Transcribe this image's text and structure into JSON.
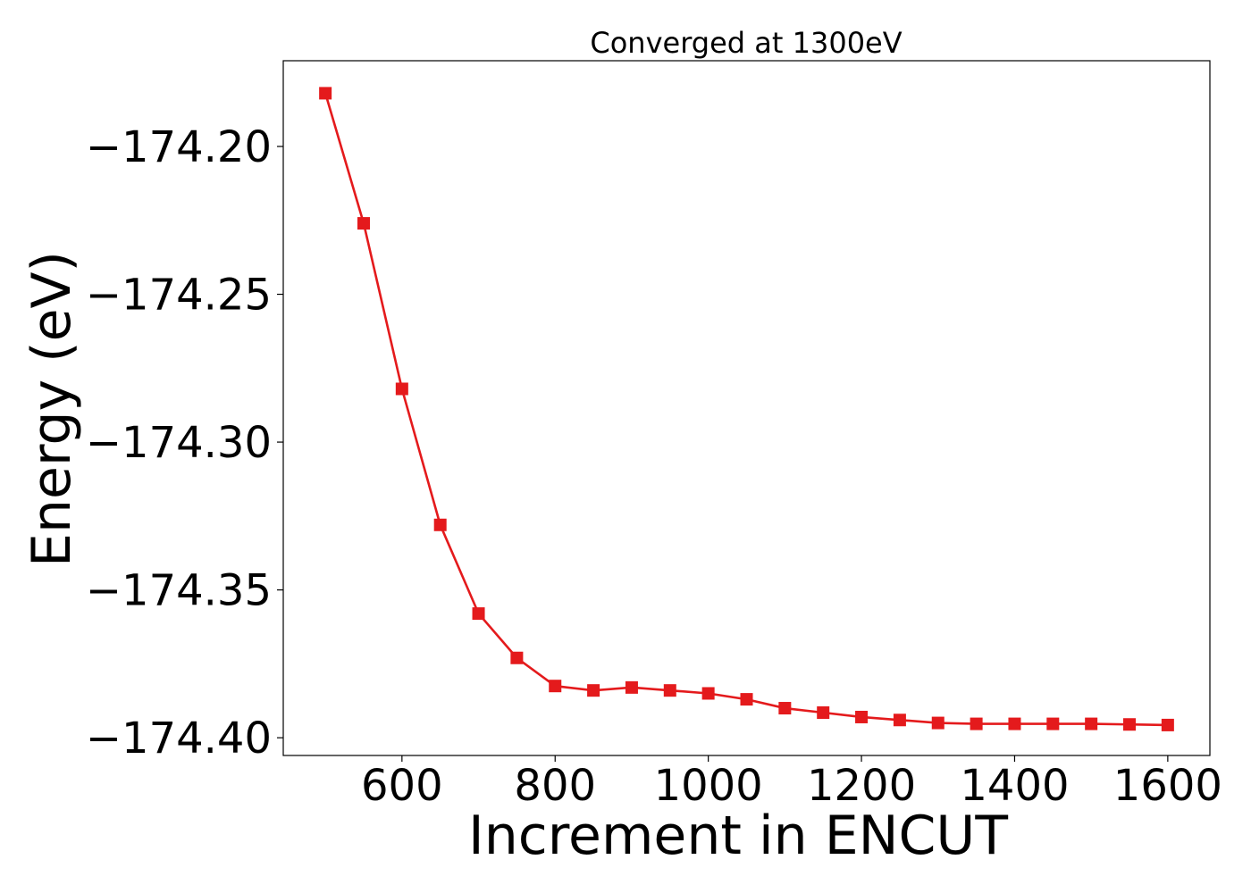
{
  "chart_data": {
    "type": "line",
    "title": "Converged at 1300eV",
    "xlabel": "Increment in ENCUT",
    "ylabel": "Energy (eV)",
    "xlim": [
      445,
      1655
    ],
    "ylim": [
      -174.406,
      -174.171
    ],
    "x_ticks": [
      600,
      800,
      1000,
      1200,
      1400,
      1600
    ],
    "y_ticks": [
      -174.2,
      -174.25,
      -174.3,
      -174.35,
      -174.4
    ],
    "y_tick_labels": [
      "−174.20",
      "−174.25",
      "−174.30",
      "−174.35",
      "−174.40"
    ],
    "grid": false,
    "legend": "none",
    "marker": "square",
    "color": "#e41a1c",
    "series": [
      {
        "x": [
          500,
          550,
          600,
          650,
          700,
          750,
          800,
          850,
          900,
          950,
          1000,
          1050,
          1100,
          1150,
          1200,
          1250,
          1300,
          1350,
          1400,
          1450,
          1500,
          1550,
          1600
        ],
        "values": [
          -174.182,
          -174.226,
          -174.282,
          -174.328,
          -174.358,
          -174.373,
          -174.3825,
          -174.384,
          -174.383,
          -174.384,
          -174.385,
          -174.387,
          -174.39,
          -174.3915,
          -174.393,
          -174.394,
          -174.395,
          -174.3953,
          -174.3953,
          -174.3953,
          -174.3953,
          -174.3955,
          -174.3957
        ]
      }
    ]
  }
}
